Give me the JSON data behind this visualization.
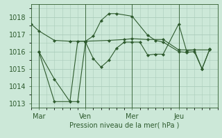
{
  "title": "Pression niveau de la mer( hPa )",
  "bg_color": "#cce8d8",
  "grid_color": "#aaccbb",
  "line_color": "#2d5a2d",
  "ylim": [
    1012.75,
    1018.75
  ],
  "yticks": [
    1013,
    1014,
    1015,
    1016,
    1017,
    1018
  ],
  "xtick_labels": [
    "Mar",
    "Ven",
    "Mer",
    "Jeu"
  ],
  "xtick_positions": [
    0.5,
    3.5,
    6.5,
    9.5
  ],
  "vline_positions": [
    0.5,
    3.5,
    6.5,
    9.5
  ],
  "xlim": [
    0,
    12
  ],
  "series1_x": [
    0.0,
    0.5,
    1.5,
    2.5,
    3.5,
    5.0,
    6.0,
    6.5,
    7.5,
    8.5,
    9.5,
    11.5
  ],
  "series1_y": [
    1017.6,
    1017.2,
    1016.65,
    1016.6,
    1016.6,
    1016.65,
    1016.7,
    1016.75,
    1016.7,
    1016.7,
    1016.1,
    1016.1
  ],
  "series2_x": [
    0.5,
    1.5,
    2.5,
    3.0,
    3.5,
    4.0,
    4.5,
    5.0,
    5.5,
    6.5,
    7.5,
    8.0,
    8.5,
    9.5,
    10.0,
    10.5,
    11.0,
    11.5
  ],
  "series2_y": [
    1016.0,
    1013.1,
    1013.1,
    1016.6,
    1016.6,
    1016.9,
    1017.8,
    1018.2,
    1018.2,
    1018.05,
    1016.95,
    1016.65,
    1016.55,
    1016.0,
    1015.95,
    1016.0,
    1015.0,
    1016.15
  ],
  "series3_x": [
    0.5,
    1.5,
    2.5,
    3.0,
    3.5,
    4.0,
    4.5,
    5.0,
    5.5,
    6.0,
    6.5,
    7.0,
    7.5,
    8.0,
    8.5,
    9.5,
    10.0,
    10.5,
    11.0,
    11.5
  ],
  "series3_y": [
    1016.0,
    1014.4,
    1013.1,
    1013.1,
    1016.55,
    1015.6,
    1015.1,
    1015.5,
    1016.2,
    1016.55,
    1016.55,
    1016.55,
    1015.8,
    1015.85,
    1015.85,
    1017.6,
    1016.05,
    1016.1,
    1015.0,
    1016.15
  ]
}
